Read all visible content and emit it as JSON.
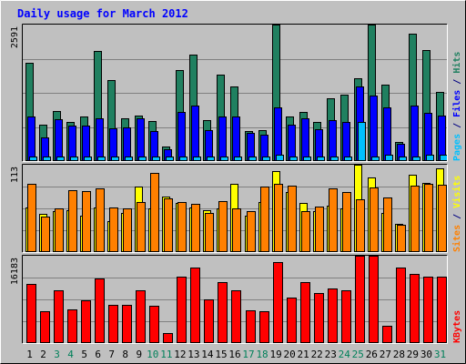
{
  "chart_data": {
    "type": "bar",
    "title": "Daily usage for March 2012",
    "categories": [
      "1",
      "2",
      "3",
      "4",
      "5",
      "6",
      "7",
      "8",
      "9",
      "10",
      "11",
      "12",
      "13",
      "14",
      "15",
      "16",
      "17",
      "18",
      "19",
      "20",
      "21",
      "22",
      "23",
      "24",
      "25",
      "26",
      "27",
      "28",
      "29",
      "30",
      "31"
    ],
    "weekend_days": [
      "3",
      "4",
      "10",
      "11",
      "17",
      "18",
      "24",
      "25",
      "31"
    ],
    "panels": [
      {
        "name": "requests",
        "ymax_label": "2591",
        "ylim": [
          0,
          2591
        ],
        "axis_labels": [
          {
            "text": "Pages",
            "color": "#00c0ff"
          },
          {
            "text": " / ",
            "color": "#000080"
          },
          {
            "text": "Files",
            "color": "#0000ff"
          },
          {
            "text": " / ",
            "color": "#000080"
          },
          {
            "text": "Hits",
            "color": "#208060"
          }
        ],
        "series": [
          {
            "name": "Hits",
            "color": "#208060",
            "values": [
              1866,
              699,
              952,
              751,
              855,
              2094,
              1542,
              818,
              865,
              757,
              283,
              1731,
              2027,
              785,
              1648,
              1411,
              571,
              581,
              2591,
              849,
              930,
              738,
              1192,
              1253,
              1572,
              2591,
              1458,
              359,
              2422,
              2112,
              1307
            ]
          },
          {
            "name": "Files",
            "color": "#0000ff",
            "values": [
              840,
              456,
              790,
              679,
              667,
              811,
              621,
              631,
              812,
              572,
              226,
              939,
              1055,
              580,
              847,
              838,
              543,
              506,
              1023,
              685,
              813,
              599,
              769,
              747,
              1415,
              1237,
              1012,
              324,
              1049,
              918,
              865
            ]
          },
          {
            "name": "Pages",
            "color": "#00c0ff",
            "values": [
              89,
              89,
              81,
              81,
              81,
              81,
              81,
              81,
              81,
              81,
              81,
              81,
              89,
              81,
              81,
              81,
              81,
              81,
              122,
              81,
              81,
              81,
              81,
              81,
              740,
              81,
              122,
              81,
              81,
              122,
              122
            ]
          }
        ]
      },
      {
        "name": "visitors",
        "ymax_label": "113",
        "ylim": [
          0,
          113
        ],
        "axis_labels": [
          {
            "text": "Sites",
            "color": "#ff8000"
          },
          {
            "text": " / ",
            "color": "#000080"
          },
          {
            "text": "Visits",
            "color": "#ffff00"
          }
        ],
        "series": [
          {
            "name": "Visits",
            "color": "#ffff00",
            "values": [
              58,
              49,
              53,
              54,
              47,
              58,
              40,
              51,
              85,
              56,
              72,
              63,
              58,
              54,
              57,
              88,
              47,
              65,
              105,
              78,
              63,
              53,
              60,
              56,
              113,
              97,
              51,
              37,
              100,
              90,
              108
            ]
          },
          {
            "name": "Sites",
            "color": "#ff8000",
            "values": [
              88,
              46,
              56,
              80,
              79,
              82,
              58,
              57,
              65,
              102,
              70,
              65,
              62,
              51,
              66,
              56,
              53,
              85,
              88,
              86,
              53,
              59,
              82,
              78,
              68,
              83,
              71,
              35,
              86,
              88,
              87
            ]
          }
        ]
      },
      {
        "name": "kbytes",
        "ymax_label": "16183",
        "ylim": [
          0,
          16183
        ],
        "axis_labels": [
          {
            "text": "KBytes",
            "color": "#ff0000"
          }
        ],
        "series": [
          {
            "name": "KBytes",
            "color": "#ff0000",
            "values": [
              10911,
              5839,
              9818,
              6309,
              7889,
              11935,
              7044,
              7044,
              9818,
              6924,
              1860,
              12249,
              13938,
              8128,
              11297,
              9818,
              6141,
              5839,
              14924,
              8354,
              11297,
              9205,
              10122,
              9818,
              16183,
              16183,
              3232,
              13938,
              12877,
              12249,
              12249
            ]
          }
        ]
      }
    ]
  }
}
